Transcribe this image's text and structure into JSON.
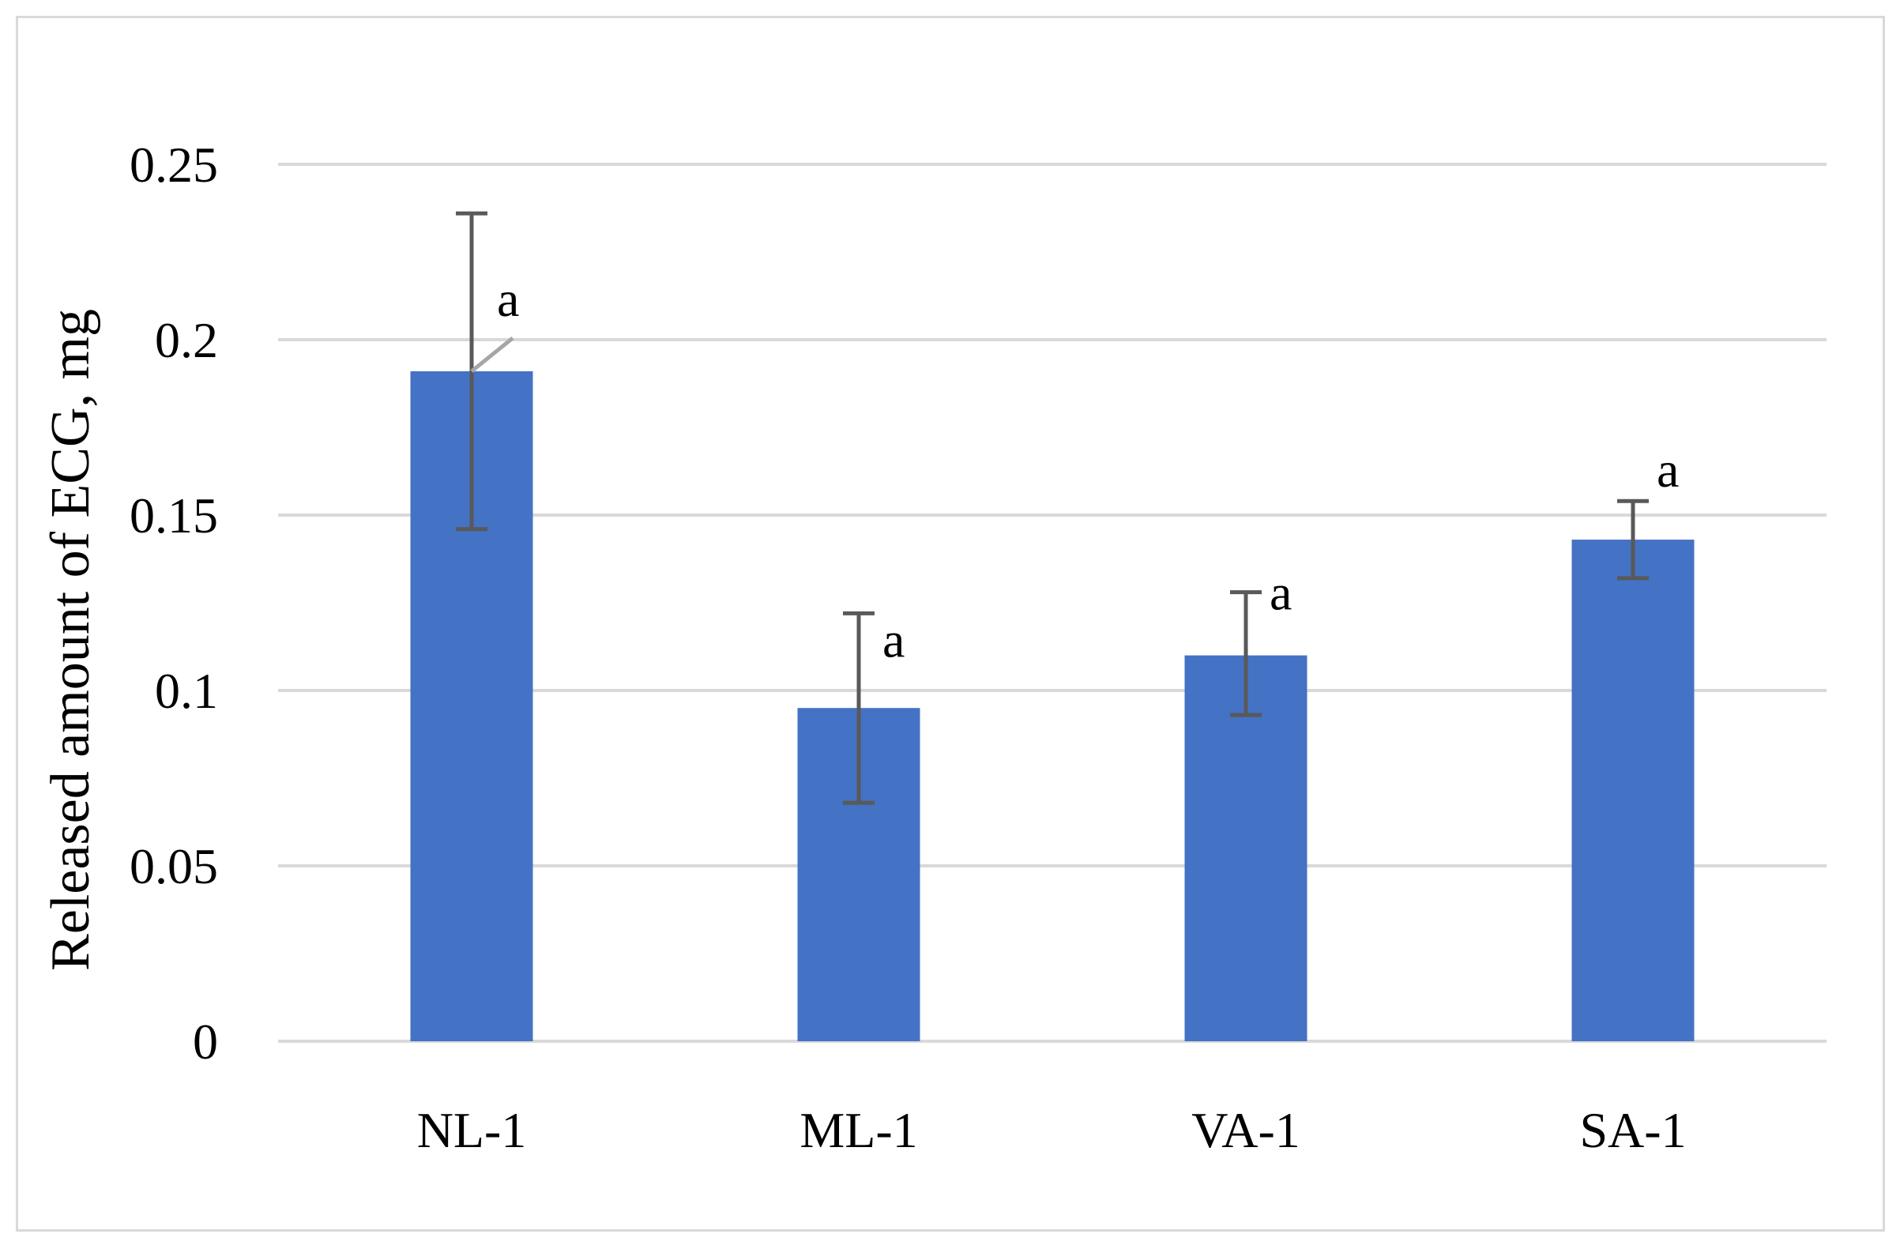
{
  "chart_data": {
    "type": "bar",
    "title": "",
    "xlabel": "",
    "ylabel": "Released amount of ECG, mg",
    "ylim": [
      0,
      0.25
    ],
    "yticks": [
      "0",
      "0.05",
      "0.1",
      "0.15",
      "0.2",
      "0.25"
    ],
    "ytick_values": [
      0,
      0.05,
      0.1,
      0.15,
      0.2,
      0.25
    ],
    "grid": true,
    "bar_color": "#4472C4",
    "error_color": "#595959",
    "grid_color": "#d9d9d9",
    "categories": [
      "NL-1",
      "ML-1",
      "VA-1",
      "SA-1"
    ],
    "values": [
      0.191,
      0.095,
      0.11,
      0.143
    ],
    "error_high": [
      0.236,
      0.122,
      0.128,
      0.154
    ],
    "error_low": [
      0.146,
      0.068,
      0.093,
      0.132
    ],
    "annotations": [
      "a",
      "a",
      "a",
      "a"
    ]
  }
}
